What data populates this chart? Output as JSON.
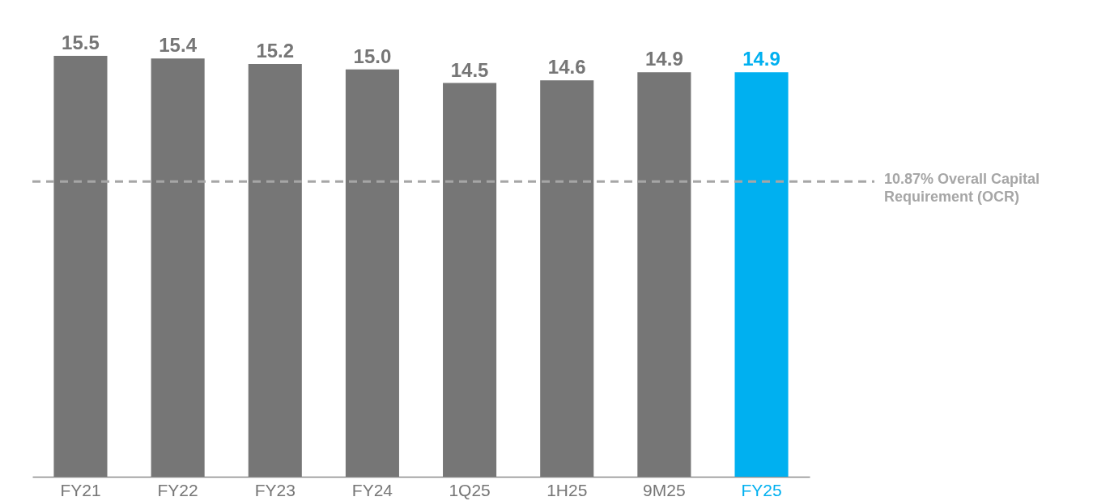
{
  "chart_data": {
    "type": "bar",
    "categories": [
      "FY21",
      "FY22",
      "FY23",
      "FY24",
      "1Q25",
      "1H25",
      "9M25",
      "FY25"
    ],
    "values": [
      15.5,
      15.4,
      15.2,
      15.0,
      14.5,
      14.6,
      14.9,
      14.9
    ],
    "colors": [
      "#767676",
      "#767676",
      "#767676",
      "#767676",
      "#767676",
      "#767676",
      "#767676",
      "#00b0f0"
    ],
    "value_labels": [
      "15.5",
      "15.4",
      "15.2",
      "15.0",
      "14.5",
      "14.6",
      "14.9",
      "14.9"
    ],
    "ref_lines": [
      {
        "axis": "y",
        "value": 10.87,
        "label": "10.87% Overall Capital Requirement (OCR)",
        "color": "#a6a6a6",
        "line_style": "dashed"
      }
    ],
    "grid": false
  }
}
